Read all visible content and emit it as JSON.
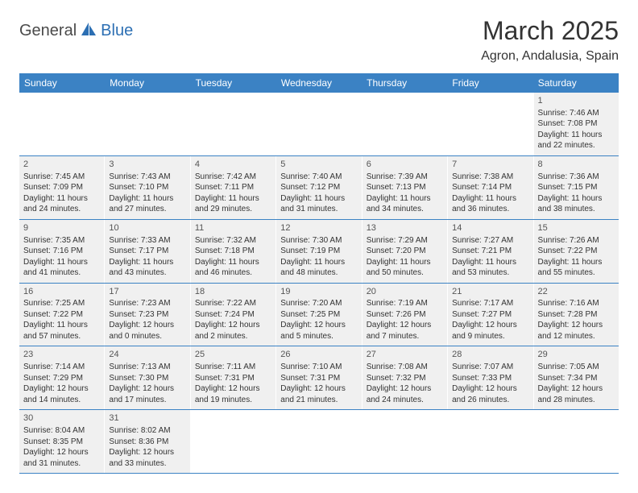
{
  "logo": {
    "part1": "General",
    "part2": "Blue"
  },
  "title": "March 2025",
  "location": "Agron, Andalusia, Spain",
  "weekdays": [
    "Sunday",
    "Monday",
    "Tuesday",
    "Wednesday",
    "Thursday",
    "Friday",
    "Saturday"
  ],
  "colors": {
    "header_bg": "#3b82c4",
    "cell_bg": "#f0f0f0",
    "border": "#3b82c4",
    "logo_blue": "#2c6fb3"
  },
  "weeks": [
    [
      null,
      null,
      null,
      null,
      null,
      null,
      {
        "n": "1",
        "sunrise": "7:46 AM",
        "sunset": "7:08 PM",
        "daylight": "11 hours and 22 minutes."
      }
    ],
    [
      {
        "n": "2",
        "sunrise": "7:45 AM",
        "sunset": "7:09 PM",
        "daylight": "11 hours and 24 minutes."
      },
      {
        "n": "3",
        "sunrise": "7:43 AM",
        "sunset": "7:10 PM",
        "daylight": "11 hours and 27 minutes."
      },
      {
        "n": "4",
        "sunrise": "7:42 AM",
        "sunset": "7:11 PM",
        "daylight": "11 hours and 29 minutes."
      },
      {
        "n": "5",
        "sunrise": "7:40 AM",
        "sunset": "7:12 PM",
        "daylight": "11 hours and 31 minutes."
      },
      {
        "n": "6",
        "sunrise": "7:39 AM",
        "sunset": "7:13 PM",
        "daylight": "11 hours and 34 minutes."
      },
      {
        "n": "7",
        "sunrise": "7:38 AM",
        "sunset": "7:14 PM",
        "daylight": "11 hours and 36 minutes."
      },
      {
        "n": "8",
        "sunrise": "7:36 AM",
        "sunset": "7:15 PM",
        "daylight": "11 hours and 38 minutes."
      }
    ],
    [
      {
        "n": "9",
        "sunrise": "7:35 AM",
        "sunset": "7:16 PM",
        "daylight": "11 hours and 41 minutes."
      },
      {
        "n": "10",
        "sunrise": "7:33 AM",
        "sunset": "7:17 PM",
        "daylight": "11 hours and 43 minutes."
      },
      {
        "n": "11",
        "sunrise": "7:32 AM",
        "sunset": "7:18 PM",
        "daylight": "11 hours and 46 minutes."
      },
      {
        "n": "12",
        "sunrise": "7:30 AM",
        "sunset": "7:19 PM",
        "daylight": "11 hours and 48 minutes."
      },
      {
        "n": "13",
        "sunrise": "7:29 AM",
        "sunset": "7:20 PM",
        "daylight": "11 hours and 50 minutes."
      },
      {
        "n": "14",
        "sunrise": "7:27 AM",
        "sunset": "7:21 PM",
        "daylight": "11 hours and 53 minutes."
      },
      {
        "n": "15",
        "sunrise": "7:26 AM",
        "sunset": "7:22 PM",
        "daylight": "11 hours and 55 minutes."
      }
    ],
    [
      {
        "n": "16",
        "sunrise": "7:25 AM",
        "sunset": "7:22 PM",
        "daylight": "11 hours and 57 minutes."
      },
      {
        "n": "17",
        "sunrise": "7:23 AM",
        "sunset": "7:23 PM",
        "daylight": "12 hours and 0 minutes."
      },
      {
        "n": "18",
        "sunrise": "7:22 AM",
        "sunset": "7:24 PM",
        "daylight": "12 hours and 2 minutes."
      },
      {
        "n": "19",
        "sunrise": "7:20 AM",
        "sunset": "7:25 PM",
        "daylight": "12 hours and 5 minutes."
      },
      {
        "n": "20",
        "sunrise": "7:19 AM",
        "sunset": "7:26 PM",
        "daylight": "12 hours and 7 minutes."
      },
      {
        "n": "21",
        "sunrise": "7:17 AM",
        "sunset": "7:27 PM",
        "daylight": "12 hours and 9 minutes."
      },
      {
        "n": "22",
        "sunrise": "7:16 AM",
        "sunset": "7:28 PM",
        "daylight": "12 hours and 12 minutes."
      }
    ],
    [
      {
        "n": "23",
        "sunrise": "7:14 AM",
        "sunset": "7:29 PM",
        "daylight": "12 hours and 14 minutes."
      },
      {
        "n": "24",
        "sunrise": "7:13 AM",
        "sunset": "7:30 PM",
        "daylight": "12 hours and 17 minutes."
      },
      {
        "n": "25",
        "sunrise": "7:11 AM",
        "sunset": "7:31 PM",
        "daylight": "12 hours and 19 minutes."
      },
      {
        "n": "26",
        "sunrise": "7:10 AM",
        "sunset": "7:31 PM",
        "daylight": "12 hours and 21 minutes."
      },
      {
        "n": "27",
        "sunrise": "7:08 AM",
        "sunset": "7:32 PM",
        "daylight": "12 hours and 24 minutes."
      },
      {
        "n": "28",
        "sunrise": "7:07 AM",
        "sunset": "7:33 PM",
        "daylight": "12 hours and 26 minutes."
      },
      {
        "n": "29",
        "sunrise": "7:05 AM",
        "sunset": "7:34 PM",
        "daylight": "12 hours and 28 minutes."
      }
    ],
    [
      {
        "n": "30",
        "sunrise": "8:04 AM",
        "sunset": "8:35 PM",
        "daylight": "12 hours and 31 minutes."
      },
      {
        "n": "31",
        "sunrise": "8:02 AM",
        "sunset": "8:36 PM",
        "daylight": "12 hours and 33 minutes."
      },
      null,
      null,
      null,
      null,
      null
    ]
  ],
  "labels": {
    "sunrise": "Sunrise:",
    "sunset": "Sunset:",
    "daylight": "Daylight:"
  }
}
